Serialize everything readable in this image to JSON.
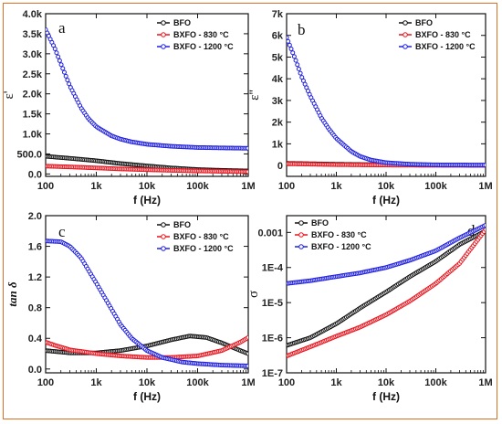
{
  "chart_data": [
    {
      "panel": "a",
      "type": "line",
      "xscale": "log",
      "xlim": [
        100,
        1000000
      ],
      "xticks": [
        "100",
        "1k",
        "10k",
        "100k",
        "1M"
      ],
      "xlabel": "f (Hz)",
      "ylabel": "ε'",
      "ylim": [
        -60,
        4000
      ],
      "yticks": [
        "0.0",
        "500.0",
        "1.0k",
        "1.5k",
        "2.0k",
        "2.5k",
        "3.0k",
        "3.5k",
        "4.0k"
      ],
      "legend_position": "top-right",
      "series": [
        {
          "name": "BFO",
          "color": "#111111",
          "x": [
            100,
            300,
            1000,
            3000,
            10000,
            30000,
            100000,
            300000,
            1000000
          ],
          "values": [
            440,
            390,
            330,
            260,
            200,
            150,
            110,
            90,
            75
          ]
        },
        {
          "name": "BXFO - 830 °C",
          "color": "#e8141e",
          "x": [
            100,
            300,
            1000,
            3000,
            10000,
            30000,
            100000,
            300000,
            1000000
          ],
          "values": [
            195,
            175,
            150,
            125,
            105,
            90,
            75,
            65,
            55
          ]
        },
        {
          "name": "BXFO - 1200 °C",
          "color": "#2020e0",
          "x": [
            100,
            150,
            200,
            300,
            500,
            700,
            1000,
            2000,
            3000,
            5000,
            10000,
            30000,
            100000,
            300000,
            1000000
          ],
          "values": [
            3600,
            3150,
            2750,
            2200,
            1650,
            1380,
            1180,
            950,
            870,
            800,
            740,
            690,
            660,
            650,
            640
          ]
        }
      ]
    },
    {
      "panel": "b",
      "type": "line",
      "xscale": "log",
      "xlim": [
        100,
        1000000
      ],
      "xticks": [
        "100",
        "1k",
        "10k",
        "100k",
        "1M"
      ],
      "xlabel": "f (Hz)",
      "ylabel": "ε''",
      "ylim": [
        -0.5,
        7
      ],
      "yticks": [
        "0",
        "1k",
        "2k",
        "3k",
        "4k",
        "5k",
        "6k",
        "7k"
      ],
      "legend_position": "top-right",
      "series": [
        {
          "name": "BFO",
          "color": "#111111",
          "x": [
            100,
            1000,
            10000,
            100000,
            1000000
          ],
          "values": [
            0.1,
            0.06,
            0.03,
            0.02,
            0.01
          ]
        },
        {
          "name": "BXFO - 830 °C",
          "color": "#e8141e",
          "x": [
            100,
            1000,
            10000,
            100000,
            1000000
          ],
          "values": [
            0.08,
            0.04,
            0.02,
            0.01,
            0.01
          ]
        },
        {
          "name": "BXFO - 1200 °C",
          "color": "#2020e0",
          "x": [
            100,
            150,
            200,
            300,
            500,
            700,
            1000,
            2000,
            3000,
            5000,
            10000,
            30000,
            100000,
            1000000
          ],
          "values": [
            5.9,
            4.9,
            4.1,
            3.2,
            2.2,
            1.7,
            1.25,
            0.65,
            0.42,
            0.25,
            0.13,
            0.06,
            0.03,
            0.02
          ]
        }
      ]
    },
    {
      "panel": "c",
      "type": "line",
      "xscale": "log",
      "xlim": [
        100,
        1000000
      ],
      "xticks": [
        "100",
        "1k",
        "10k",
        "100k",
        "1M"
      ],
      "xlabel": "f (Hz)",
      "ylabel": "tan δ",
      "ylim": [
        -0.05,
        2.0
      ],
      "yticks": [
        "0.0",
        "0.4",
        "0.8",
        "1.2",
        "1.6",
        "2.0"
      ],
      "legend_position": "top-right",
      "series": [
        {
          "name": "BFO",
          "color": "#111111",
          "x": [
            100,
            300,
            1000,
            3000,
            10000,
            30000,
            70000,
            150000,
            300000,
            700000,
            1000000
          ],
          "values": [
            0.24,
            0.21,
            0.21,
            0.24,
            0.3,
            0.38,
            0.43,
            0.41,
            0.34,
            0.24,
            0.2
          ]
        },
        {
          "name": "BXFO - 830 °C",
          "color": "#e8141e",
          "x": [
            100,
            150,
            300,
            1000,
            3000,
            10000,
            30000,
            100000,
            300000,
            700000,
            1000000
          ],
          "values": [
            0.35,
            0.31,
            0.25,
            0.2,
            0.17,
            0.15,
            0.15,
            0.17,
            0.24,
            0.35,
            0.41
          ]
        },
        {
          "name": "BXFO - 1200 °C",
          "color": "#2020e0",
          "x": [
            100,
            200,
            300,
            500,
            1000,
            2000,
            3000,
            5000,
            10000,
            20000,
            50000,
            100000,
            300000,
            1000000
          ],
          "values": [
            1.67,
            1.66,
            1.6,
            1.45,
            1.12,
            0.78,
            0.58,
            0.4,
            0.24,
            0.15,
            0.09,
            0.07,
            0.05,
            0.04
          ]
        }
      ]
    },
    {
      "panel": "d",
      "type": "line",
      "xscale": "log",
      "yscale": "log",
      "xlim": [
        100,
        1000000
      ],
      "xticks": [
        "100",
        "1k",
        "10k",
        "100k",
        "1M"
      ],
      "xlabel": "f (Hz)",
      "ylabel": "σ",
      "ylim": [
        1e-07,
        0.003
      ],
      "yticks": [
        "1E-7",
        "1E-6",
        "1E-5",
        "1E-4",
        "0.001"
      ],
      "legend_position": "top-left",
      "series": [
        {
          "name": "BFO",
          "color": "#111111",
          "x": [
            100,
            300,
            1000,
            3000,
            10000,
            30000,
            100000,
            300000,
            1000000
          ],
          "values": [
            6e-07,
            1e-06,
            2.5e-06,
            7e-06,
            2e-05,
            5.5e-05,
            0.00015,
            0.00045,
            0.0011
          ]
        },
        {
          "name": "BXFO - 830 °C",
          "color": "#e8141e",
          "x": [
            100,
            300,
            1000,
            3000,
            10000,
            30000,
            100000,
            300000,
            1000000
          ],
          "values": [
            3e-07,
            5.5e-07,
            1.1e-06,
            2e-06,
            4.5e-06,
            1.1e-05,
            3.5e-05,
            0.00013,
            0.0012
          ]
        },
        {
          "name": "BXFO - 1200 °C",
          "color": "#2020e0",
          "x": [
            100,
            300,
            1000,
            3000,
            10000,
            30000,
            100000,
            300000,
            1000000
          ],
          "values": [
            3.5e-05,
            4.2e-05,
            5.5e-05,
            7e-05,
            0.0001,
            0.00016,
            0.0003,
            0.0007,
            0.0016
          ]
        }
      ]
    }
  ]
}
